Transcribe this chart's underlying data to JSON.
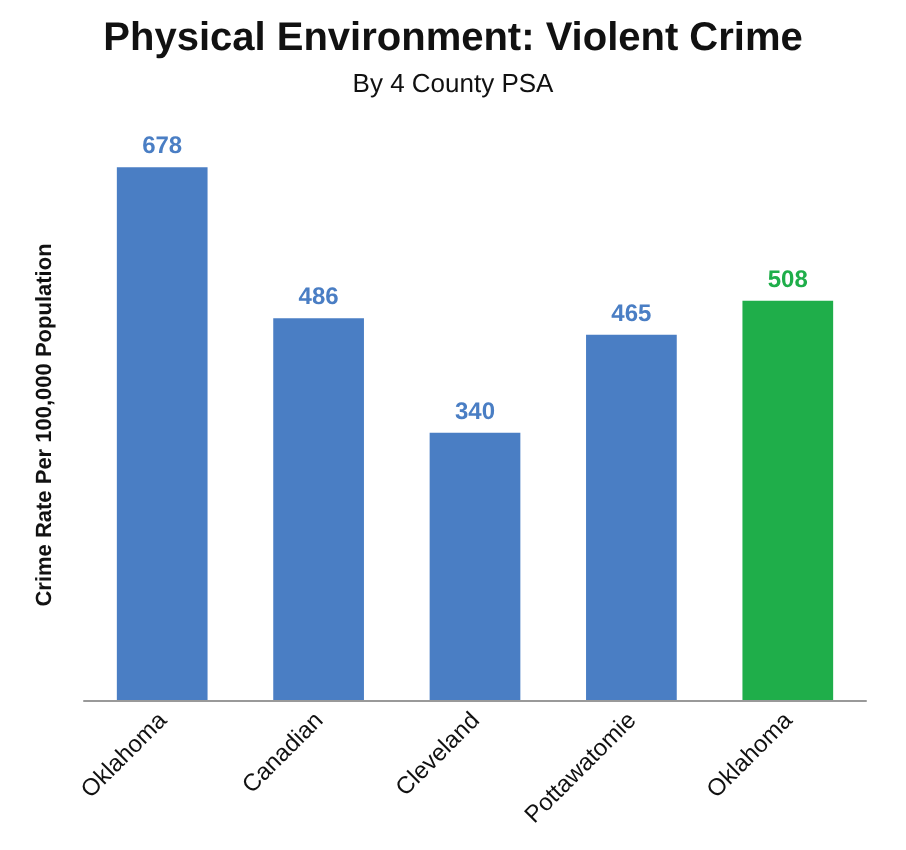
{
  "chart_data": {
    "type": "bar",
    "title": "Physical Environment: Violent Crime",
    "subtitle": "By 4 County PSA",
    "ylabel": "Crime Rate Per 100,000 Population",
    "categories": [
      "Oklahoma",
      "Canadian",
      "Cleveland",
      "Pottawatomie",
      "Oklahoma"
    ],
    "values": [
      678,
      486,
      340,
      465,
      508
    ],
    "colors": [
      "#4a7ec4",
      "#4a7ec4",
      "#4a7ec4",
      "#4a7ec4",
      "#1fae4a"
    ],
    "data_labels": true
  }
}
